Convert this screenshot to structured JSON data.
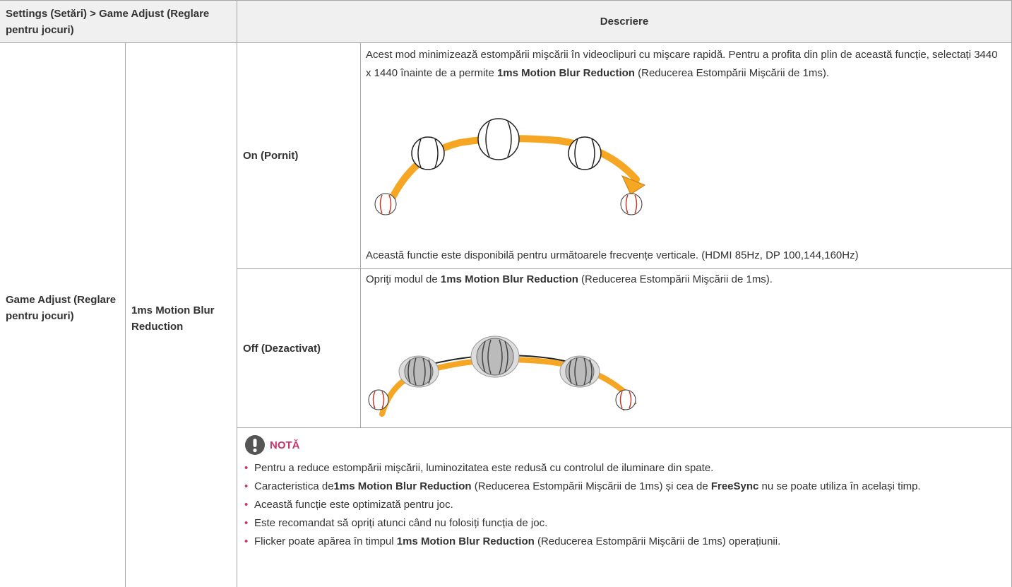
{
  "header": {
    "section": "Settings (Setări) > Game Adjust (Reglare pentru jocuri)",
    "description": "Descriere"
  },
  "menu": {
    "level1": "Game Adjust (Reglare pentru jocuri)",
    "level2": "1ms Motion Blur Reduction"
  },
  "options": [
    {
      "label": "On (Pornit)",
      "description": [
        "Acest mod minimizează estompării mişcării în videoclipuri cu mişcare rapidă. Pentru a profita din plin de această funcție, selectați 3440 x 1440 înainte de a permite ",
        "1ms Motion Blur Reduction",
        " (Reducerea Estompării Mişcării de 1ms)."
      ],
      "availability": "Această functie este disponibilă pentru următoarele frecvențe verticale. (HDMI 85Hz, DP 100,144,160Hz)"
    },
    {
      "label": "Off (Dezactivat)",
      "description": [
        "Opriţi modul de ",
        "1ms Motion Blur Reduction",
        " (Reducerea Estompării Mişcării de 1ms)."
      ]
    }
  ],
  "note": {
    "title": "NOTĂ",
    "items": [
      [
        "Pentru a reduce estompării mişcării, luminozitatea este redusă cu controlul de iluminare din spate."
      ],
      [
        "Caracteristica de",
        "1ms Motion Blur Reduction",
        " (Reducerea Estompării Mişcării de 1ms) și cea de ",
        "FreeSync",
        " nu se poate utiliza în același timp."
      ],
      [
        "Această funcție este optimizată pentru joc."
      ],
      [
        "Este recomandat să opriți atunci când nu folosiți funcția de joc."
      ],
      [
        "Flicker poate apărea în timpul ",
        "1ms Motion Blur Reduction",
        " (Reducerea Estompării Mişcării de 1ms) operațiunii."
      ]
    ]
  }
}
